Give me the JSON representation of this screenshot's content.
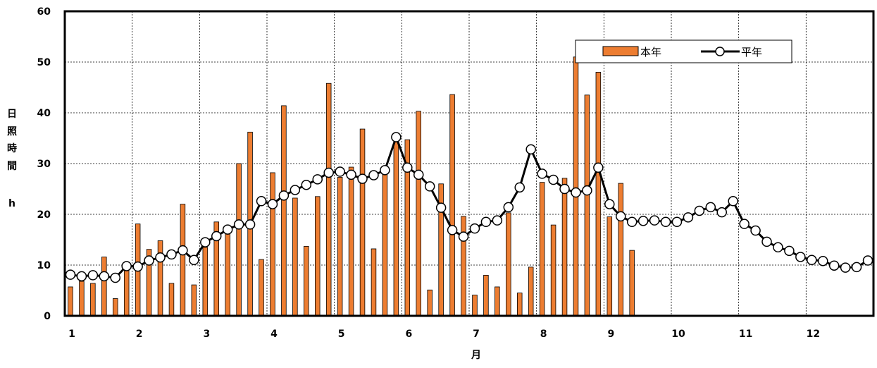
{
  "chart_data": {
    "type": "bar+line",
    "xlabel": "月",
    "ylabel": [
      "日",
      "照",
      "時",
      "間",
      "h"
    ],
    "ylim": [
      0,
      60
    ],
    "yticks": [
      0,
      10,
      20,
      30,
      40,
      50,
      60
    ],
    "xticks": [
      "1",
      "2",
      "3",
      "4",
      "5",
      "6",
      "7",
      "8",
      "9",
      "10",
      "11",
      "12"
    ],
    "periods_per_month": 6,
    "grid": true,
    "legend_position": "top-right",
    "colors": {
      "bar": "#ed7d31",
      "bar_edge": "#000000",
      "line": "#000000",
      "marker_fill": "#ffffff"
    },
    "series": [
      {
        "name": "本年",
        "type": "bar",
        "values": [
          5.7,
          6.8,
          6.4,
          11.6,
          3.4,
          9.6,
          18.1,
          13.1,
          14.8,
          6.4,
          22.0,
          6.1,
          13.5,
          18.5,
          16.5,
          30.0,
          36.2,
          11.1,
          28.2,
          41.4,
          23.2,
          13.7,
          23.5,
          45.8,
          27.3,
          29.3,
          36.8,
          13.2,
          28.0,
          35.0,
          34.7,
          40.3,
          5.1,
          26.0,
          43.6,
          19.6,
          4.1,
          8.0,
          5.7,
          20.3,
          4.5,
          9.6,
          26.3,
          17.9,
          27.1,
          51.0,
          43.5,
          48.0,
          19.5,
          26.1,
          12.9
        ]
      },
      {
        "name": "平年",
        "type": "line",
        "values": [
          8.1,
          7.8,
          8.0,
          7.8,
          7.5,
          9.8,
          9.7,
          10.9,
          11.5,
          12.1,
          12.9,
          11.0,
          14.5,
          15.7,
          17.0,
          18.0,
          18.0,
          22.6,
          22.0,
          23.7,
          24.8,
          25.8,
          26.9,
          28.2,
          28.4,
          27.8,
          27.0,
          27.7,
          28.7,
          35.2,
          29.2,
          27.8,
          25.5,
          21.3,
          16.9,
          15.6,
          17.2,
          18.5,
          18.8,
          21.4,
          25.3,
          32.8,
          28.0,
          26.8,
          25.0,
          24.3,
          24.7,
          29.2,
          22.0,
          19.6,
          18.5,
          18.7,
          18.8,
          18.5,
          18.5,
          19.4,
          20.7,
          21.4,
          20.4,
          22.6,
          18.1,
          16.8,
          14.6,
          13.5,
          12.8,
          11.6,
          11.0,
          10.8,
          9.9,
          9.5,
          9.6,
          10.9
        ]
      }
    ]
  }
}
